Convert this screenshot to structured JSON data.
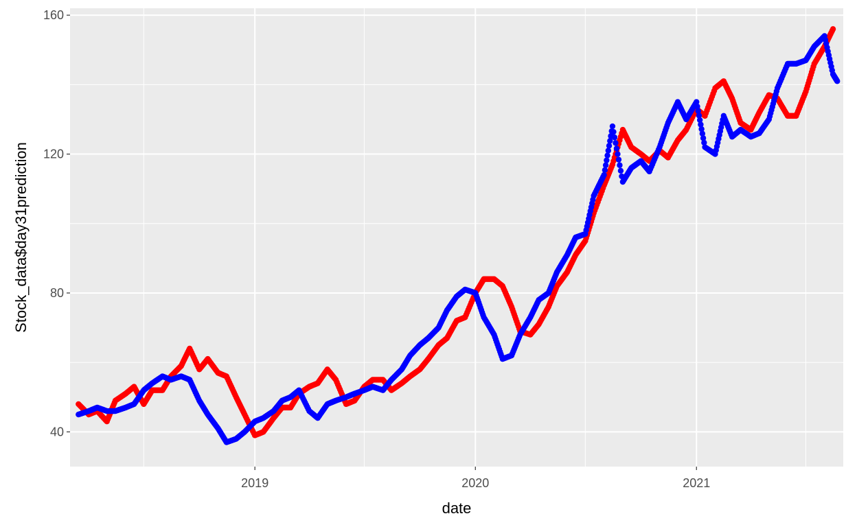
{
  "chart_data": {
    "type": "scatter",
    "title": "",
    "xlabel": "date",
    "ylabel": "Stock_data$day31prediction",
    "xlim": [
      "2018-03-01",
      "2021-09-01"
    ],
    "ylim": [
      30,
      162
    ],
    "x_ticks": [
      "2019-01-01",
      "2020-01-01",
      "2021-01-01"
    ],
    "x_tick_labels": [
      "2019",
      "2020",
      "2021"
    ],
    "y_ticks": [
      40,
      80,
      120,
      160
    ],
    "y_tick_labels": [
      "40",
      "80",
      "120",
      "160"
    ],
    "x_minor_ticks": [
      "2018-07-01",
      "2019-07-01",
      "2020-07-01",
      "2021-07-01"
    ],
    "y_minor_ticks": [
      60,
      100,
      140
    ],
    "grid": true,
    "legend": "none",
    "panel_background": "#ebebeb",
    "grid_color": "#ffffff",
    "series": [
      {
        "color": "#ff0000",
        "points": [
          [
            "2018-03-15",
            48
          ],
          [
            "2018-04-01",
            45
          ],
          [
            "2018-04-15",
            46
          ],
          [
            "2018-05-01",
            43
          ],
          [
            "2018-05-15",
            49
          ],
          [
            "2018-06-01",
            51
          ],
          [
            "2018-06-15",
            53
          ],
          [
            "2018-07-01",
            48
          ],
          [
            "2018-07-15",
            52
          ],
          [
            "2018-08-01",
            52
          ],
          [
            "2018-08-15",
            56
          ],
          [
            "2018-09-01",
            59
          ],
          [
            "2018-09-15",
            64
          ],
          [
            "2018-10-01",
            58
          ],
          [
            "2018-10-15",
            61
          ],
          [
            "2018-11-01",
            57
          ],
          [
            "2018-11-15",
            56
          ],
          [
            "2018-12-01",
            50
          ],
          [
            "2018-12-15",
            45
          ],
          [
            "2019-01-01",
            39
          ],
          [
            "2019-01-15",
            40
          ],
          [
            "2019-02-01",
            44
          ],
          [
            "2019-02-15",
            47
          ],
          [
            "2019-03-01",
            47
          ],
          [
            "2019-03-15",
            51
          ],
          [
            "2019-04-01",
            53
          ],
          [
            "2019-04-15",
            54
          ],
          [
            "2019-05-01",
            58
          ],
          [
            "2019-05-15",
            55
          ],
          [
            "2019-06-01",
            48
          ],
          [
            "2019-06-15",
            49
          ],
          [
            "2019-07-01",
            53
          ],
          [
            "2019-07-15",
            55
          ],
          [
            "2019-08-01",
            55
          ],
          [
            "2019-08-15",
            52
          ],
          [
            "2019-09-01",
            54
          ],
          [
            "2019-09-15",
            56
          ],
          [
            "2019-10-01",
            58
          ],
          [
            "2019-10-15",
            61
          ],
          [
            "2019-11-01",
            65
          ],
          [
            "2019-11-15",
            67
          ],
          [
            "2019-12-01",
            72
          ],
          [
            "2019-12-15",
            73
          ],
          [
            "2020-01-01",
            80
          ],
          [
            "2020-01-15",
            84
          ],
          [
            "2020-02-01",
            84
          ],
          [
            "2020-02-15",
            82
          ],
          [
            "2020-03-01",
            76
          ],
          [
            "2020-03-15",
            69
          ],
          [
            "2020-04-01",
            68
          ],
          [
            "2020-04-15",
            71
          ],
          [
            "2020-05-01",
            76
          ],
          [
            "2020-05-15",
            82
          ],
          [
            "2020-06-01",
            86
          ],
          [
            "2020-06-15",
            91
          ],
          [
            "2020-07-01",
            95
          ],
          [
            "2020-07-15",
            103
          ],
          [
            "2020-08-01",
            111
          ],
          [
            "2020-08-15",
            117
          ],
          [
            "2020-09-01",
            127
          ],
          [
            "2020-09-15",
            122
          ],
          [
            "2020-10-01",
            120
          ],
          [
            "2020-10-15",
            118
          ],
          [
            "2020-11-01",
            121
          ],
          [
            "2020-11-15",
            119
          ],
          [
            "2020-12-01",
            124
          ],
          [
            "2020-12-15",
            127
          ],
          [
            "2021-01-01",
            133
          ],
          [
            "2021-01-15",
            131
          ],
          [
            "2021-02-01",
            139
          ],
          [
            "2021-02-15",
            141
          ],
          [
            "2021-03-01",
            136
          ],
          [
            "2021-03-15",
            129
          ],
          [
            "2021-04-01",
            127
          ],
          [
            "2021-04-15",
            132
          ],
          [
            "2021-05-01",
            137
          ],
          [
            "2021-05-15",
            136
          ],
          [
            "2021-06-01",
            131
          ],
          [
            "2021-06-15",
            131
          ],
          [
            "2021-07-01",
            138
          ],
          [
            "2021-07-15",
            146
          ],
          [
            "2021-08-01",
            151
          ],
          [
            "2021-08-15",
            156
          ]
        ]
      },
      {
        "color": "#0000ff",
        "points": [
          [
            "2018-03-15",
            45
          ],
          [
            "2018-04-01",
            46
          ],
          [
            "2018-04-15",
            47
          ],
          [
            "2018-05-01",
            46
          ],
          [
            "2018-05-15",
            46
          ],
          [
            "2018-06-01",
            47
          ],
          [
            "2018-06-15",
            48
          ],
          [
            "2018-07-01",
            52
          ],
          [
            "2018-07-15",
            54
          ],
          [
            "2018-08-01",
            56
          ],
          [
            "2018-08-15",
            55
          ],
          [
            "2018-09-01",
            56
          ],
          [
            "2018-09-15",
            55
          ],
          [
            "2018-10-01",
            49
          ],
          [
            "2018-10-15",
            45
          ],
          [
            "2018-11-01",
            41
          ],
          [
            "2018-11-15",
            37
          ],
          [
            "2018-12-01",
            38
          ],
          [
            "2018-12-15",
            40
          ],
          [
            "2019-01-01",
            43
          ],
          [
            "2019-01-15",
            44
          ],
          [
            "2019-02-01",
            46
          ],
          [
            "2019-02-15",
            49
          ],
          [
            "2019-03-01",
            50
          ],
          [
            "2019-03-15",
            52
          ],
          [
            "2019-04-01",
            46
          ],
          [
            "2019-04-15",
            44
          ],
          [
            "2019-05-01",
            48
          ],
          [
            "2019-05-15",
            49
          ],
          [
            "2019-06-01",
            50
          ],
          [
            "2019-06-15",
            51
          ],
          [
            "2019-07-01",
            52
          ],
          [
            "2019-07-15",
            53
          ],
          [
            "2019-08-01",
            52
          ],
          [
            "2019-08-15",
            55
          ],
          [
            "2019-09-01",
            58
          ],
          [
            "2019-09-15",
            62
          ],
          [
            "2019-10-01",
            65
          ],
          [
            "2019-10-15",
            67
          ],
          [
            "2019-11-01",
            70
          ],
          [
            "2019-11-15",
            75
          ],
          [
            "2019-12-01",
            79
          ],
          [
            "2019-12-15",
            81
          ],
          [
            "2020-01-01",
            80
          ],
          [
            "2020-01-15",
            73
          ],
          [
            "2020-02-01",
            68
          ],
          [
            "2020-02-15",
            61
          ],
          [
            "2020-03-01",
            62
          ],
          [
            "2020-03-15",
            68
          ],
          [
            "2020-04-01",
            73
          ],
          [
            "2020-04-15",
            78
          ],
          [
            "2020-05-01",
            80
          ],
          [
            "2020-05-15",
            86
          ],
          [
            "2020-06-01",
            91
          ],
          [
            "2020-06-15",
            96
          ],
          [
            "2020-07-01",
            97
          ],
          [
            "2020-07-15",
            108
          ],
          [
            "2020-08-01",
            114
          ],
          [
            "2020-08-15",
            128
          ],
          [
            "2020-09-01",
            112
          ],
          [
            "2020-09-15",
            116
          ],
          [
            "2020-10-01",
            118
          ],
          [
            "2020-10-15",
            115
          ],
          [
            "2020-11-01",
            122
          ],
          [
            "2020-11-15",
            129
          ],
          [
            "2020-12-01",
            135
          ],
          [
            "2020-12-15",
            130
          ],
          [
            "2021-01-01",
            135
          ],
          [
            "2021-01-15",
            122
          ],
          [
            "2021-02-01",
            120
          ],
          [
            "2021-02-15",
            131
          ],
          [
            "2021-03-01",
            125
          ],
          [
            "2021-03-15",
            127
          ],
          [
            "2021-04-01",
            125
          ],
          [
            "2021-04-15",
            126
          ],
          [
            "2021-05-01",
            130
          ],
          [
            "2021-05-15",
            139
          ],
          [
            "2021-06-01",
            146
          ],
          [
            "2021-06-15",
            146
          ],
          [
            "2021-07-01",
            147
          ],
          [
            "2021-07-15",
            151
          ],
          [
            "2021-08-01",
            154
          ],
          [
            "2021-08-15",
            143
          ],
          [
            "2021-08-22",
            141
          ]
        ]
      }
    ]
  }
}
